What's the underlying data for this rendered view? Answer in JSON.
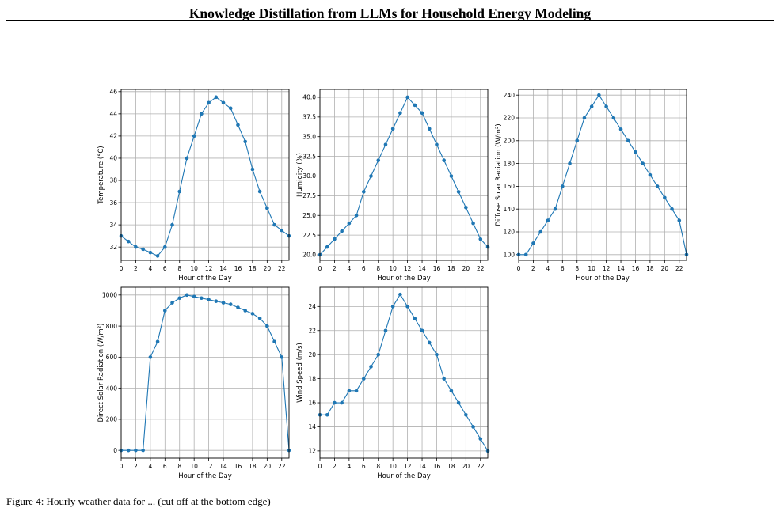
{
  "header": {
    "title": "Knowledge Distillation from LLMs for Household Energy Modeling"
  },
  "caption": {
    "text": "Figure 4: Hourly weather data for ... (cut off at the bottom edge)"
  },
  "style": {
    "line_color": "#1f77b4",
    "grid_color": "#b0b0b0"
  },
  "chart_data": [
    {
      "type": "line",
      "xlabel": "Hour of the Day",
      "ylabel": "Temperature (°C)",
      "x": [
        0,
        1,
        2,
        3,
        4,
        5,
        6,
        7,
        8,
        9,
        10,
        11,
        12,
        13,
        14,
        15,
        16,
        17,
        18,
        19,
        20,
        21,
        22,
        23
      ],
      "values": [
        33,
        32.5,
        32,
        31.8,
        31.5,
        31.2,
        32,
        34,
        37,
        40,
        42,
        44,
        45,
        45.5,
        45,
        44.5,
        43,
        41.5,
        39,
        37,
        35.5,
        34,
        33.5,
        33
      ],
      "xlim": [
        0,
        23
      ],
      "ylim": [
        30.8,
        46.2
      ],
      "xticks": [
        0,
        2,
        4,
        6,
        8,
        10,
        12,
        14,
        16,
        18,
        20,
        22
      ],
      "yticks": [
        32,
        34,
        36,
        38,
        40,
        42,
        44,
        46
      ],
      "ytick_labels": [
        "32",
        "34",
        "36",
        "38",
        "40",
        "42",
        "44",
        "46"
      ],
      "grid": true
    },
    {
      "type": "line",
      "xlabel": "Hour of the Day",
      "ylabel": "Humidity (%)",
      "x": [
        0,
        1,
        2,
        3,
        4,
        5,
        6,
        7,
        8,
        9,
        10,
        11,
        12,
        13,
        14,
        15,
        16,
        17,
        18,
        19,
        20,
        21,
        22,
        23
      ],
      "values": [
        20,
        21,
        22,
        23,
        24,
        25,
        28,
        30,
        32,
        34,
        36,
        38,
        40,
        39,
        38,
        36,
        34,
        32,
        30,
        28,
        26,
        24,
        22,
        21
      ],
      "xlim": [
        0,
        23
      ],
      "ylim": [
        19.3,
        41
      ],
      "xticks": [
        0,
        2,
        4,
        6,
        8,
        10,
        12,
        14,
        16,
        18,
        20,
        22
      ],
      "yticks": [
        20,
        22.5,
        25,
        27.5,
        30,
        32.5,
        35,
        37.5,
        40
      ],
      "ytick_labels": [
        "20.0",
        "22.5",
        "25.0",
        "27.5",
        "30.0",
        "32.5",
        "35.0",
        "37.5",
        "40.0"
      ],
      "grid": true
    },
    {
      "type": "line",
      "xlabel": "Hour of the Day",
      "ylabel": "Diffuse Solar Radiation (W/m²)",
      "x": [
        0,
        1,
        2,
        3,
        4,
        5,
        6,
        7,
        8,
        9,
        10,
        11,
        12,
        13,
        14,
        15,
        16,
        17,
        18,
        19,
        20,
        21,
        22,
        23
      ],
      "values": [
        100,
        100,
        110,
        120,
        130,
        140,
        160,
        180,
        200,
        220,
        230,
        240,
        230,
        220,
        210,
        200,
        190,
        180,
        170,
        160,
        150,
        140,
        130,
        100
      ],
      "xlim": [
        0,
        23
      ],
      "ylim": [
        95,
        245
      ],
      "xticks": [
        0,
        2,
        4,
        6,
        8,
        10,
        12,
        14,
        16,
        18,
        20,
        22
      ],
      "yticks": [
        100,
        120,
        140,
        160,
        180,
        200,
        220,
        240
      ],
      "ytick_labels": [
        "100",
        "120",
        "140",
        "160",
        "180",
        "200",
        "220",
        "240"
      ],
      "grid": true
    },
    {
      "type": "line",
      "xlabel": "Hour of the Day",
      "ylabel": "Direct Solar Radiation (W/m²)",
      "x": [
        0,
        1,
        2,
        3,
        4,
        5,
        6,
        7,
        8,
        9,
        10,
        11,
        12,
        13,
        14,
        15,
        16,
        17,
        18,
        19,
        20,
        21,
        22,
        23
      ],
      "values": [
        0,
        0,
        0,
        0,
        600,
        700,
        900,
        950,
        980,
        1000,
        990,
        980,
        970,
        960,
        950,
        940,
        920,
        900,
        880,
        850,
        800,
        700,
        600,
        0
      ],
      "xlim": [
        0,
        23
      ],
      "ylim": [
        -50,
        1050
      ],
      "xticks": [
        0,
        2,
        4,
        6,
        8,
        10,
        12,
        14,
        16,
        18,
        20,
        22
      ],
      "yticks": [
        0,
        200,
        400,
        600,
        800,
        1000
      ],
      "ytick_labels": [
        "0",
        "200",
        "400",
        "600",
        "800",
        "1000"
      ],
      "grid": true
    },
    {
      "type": "line",
      "xlabel": "Hour of the Day",
      "ylabel": "Wind Speed (m/s)",
      "x": [
        0,
        1,
        2,
        3,
        4,
        5,
        6,
        7,
        8,
        9,
        10,
        11,
        12,
        13,
        14,
        15,
        16,
        17,
        18,
        19,
        20,
        21,
        22,
        23
      ],
      "values": [
        15,
        15,
        16,
        16,
        17,
        17,
        18,
        19,
        20,
        22,
        24,
        25,
        24,
        23,
        22,
        21,
        20,
        18,
        17,
        16,
        15,
        14,
        13,
        12
      ],
      "xlim": [
        0,
        23
      ],
      "ylim": [
        11.4,
        25.6
      ],
      "xticks": [
        0,
        2,
        4,
        6,
        8,
        10,
        12,
        14,
        16,
        18,
        20,
        22
      ],
      "yticks": [
        12,
        14,
        16,
        18,
        20,
        22,
        24
      ],
      "ytick_labels": [
        "12",
        "14",
        "16",
        "18",
        "20",
        "22",
        "24"
      ],
      "grid": true
    }
  ]
}
